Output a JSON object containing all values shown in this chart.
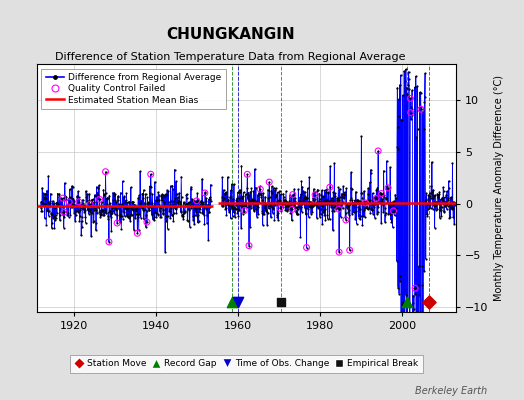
{
  "title": "CHUNGKANGIN",
  "subtitle": "Difference of Station Temperature Data from Regional Average",
  "ylabel": "Monthly Temperature Anomaly Difference (°C)",
  "xlim": [
    1911,
    2013
  ],
  "ylim": [
    -10.5,
    13.5
  ],
  "yticks": [
    -10,
    -5,
    0,
    5,
    10
  ],
  "xticks": [
    1920,
    1940,
    1960,
    1980,
    2000
  ],
  "background_color": "#e0e0e0",
  "plot_bg_color": "#ffffff",
  "grid_color": "#bbbbbb",
  "line_color": "#0000ff",
  "marker_color": "#000000",
  "qc_failed_color": "#ff00ff",
  "bias_line_color": "#ff0000",
  "station_move_color": "#cc0000",
  "record_gap_color": "#008000",
  "time_obs_color": "#0000cc",
  "empirical_break_color": "#111111",
  "station_moves": [
    2006.5
  ],
  "record_gaps": [
    1958.5,
    2001.0
  ],
  "time_obs_changes": [
    1960.0
  ],
  "empirical_breaks": [
    1970.5
  ],
  "bias_segments": [
    {
      "x": [
        1911,
        1954
      ],
      "y": [
        -0.25,
        -0.25
      ]
    },
    {
      "x": [
        1955,
        2013
      ],
      "y": [
        0.05,
        0.05
      ]
    }
  ],
  "berkeley_earth_text": "Berkeley Earth",
  "title_fontsize": 11,
  "subtitle_fontsize": 8,
  "axis_fontsize": 8,
  "ylabel_fontsize": 7
}
